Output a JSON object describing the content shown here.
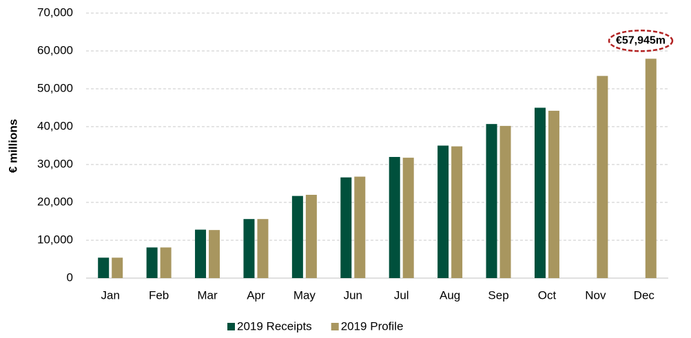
{
  "chart_data": {
    "type": "bar",
    "y_label": "€ millions",
    "categories": [
      "Jan",
      "Feb",
      "Mar",
      "Apr",
      "May",
      "Jun",
      "Jul",
      "Aug",
      "Sep",
      "Oct",
      "Nov",
      "Dec"
    ],
    "series": [
      {
        "name": "2019 Receipts",
        "color": "#00503c",
        "values": [
          5400,
          8100,
          12800,
          15600,
          21700,
          26600,
          32000,
          35000,
          40700,
          45000,
          null,
          null
        ]
      },
      {
        "name": "2019 Profile",
        "color": "#a8965f",
        "values": [
          5400,
          8100,
          12700,
          15600,
          22000,
          26800,
          31800,
          34800,
          40200,
          44200,
          53400,
          57945
        ],
        "value_labels": [
          null,
          null,
          null,
          null,
          null,
          null,
          null,
          null,
          null,
          null,
          null,
          "€57,945m"
        ]
      }
    ],
    "ylim": [
      0,
      70000
    ],
    "yticks": [
      0,
      {
        "value": 10000,
        "label": "10,000"
      },
      {
        "value": 20000,
        "label": "20,000"
      },
      {
        "value": 30000,
        "label": "30,000"
      },
      {
        "value": 40000,
        "label": "40,000"
      },
      {
        "value": 50000,
        "label": "50,000"
      },
      {
        "value": 60000,
        "label": "60,000"
      },
      {
        "value": 70000,
        "label": "70,000"
      }
    ],
    "grid": true,
    "legend": "bottom"
  }
}
